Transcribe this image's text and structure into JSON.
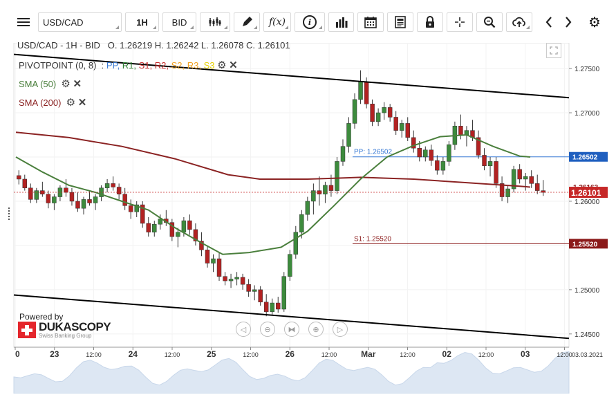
{
  "toolbar": {
    "instrument": "USD/CAD",
    "timeframe": "1H",
    "side": "BID",
    "icons": [
      "menu-icon",
      "candlestick-icon",
      "pencil-icon",
      "function-icon",
      "info-icon",
      "bar-chart-icon",
      "calendar-icon",
      "news-icon",
      "lock-icon",
      "crosshair-icon",
      "zoom-icon",
      "upload-icon",
      "chevron-left-icon",
      "chevron-right-icon",
      "gear-icon"
    ]
  },
  "legend": {
    "title": "USD/CAD - 1H - BID",
    "ohlc": "O. 1.26219 H. 1.26242 L. 1.26078 C. 1.26101",
    "pivot_label": "PIVOTPOINT (0, 8)",
    "pivot_series": [
      {
        "name": "PP",
        "color": "#3a7bd5"
      },
      {
        "name": "R1",
        "color": "#2e7d32"
      },
      {
        "name": "S1",
        "color": "#c62828"
      },
      {
        "name": "R2",
        "color": "#c62828"
      },
      {
        "name": "S2",
        "color": "#f0a020"
      },
      {
        "name": "R3",
        "color": "#f0a020"
      },
      {
        "name": "S3",
        "color": "#e6d100"
      }
    ],
    "sma50_label": "SMA (50)",
    "sma50_color": "#4a7f3c",
    "sma200_label": "SMA (200)",
    "sma200_color": "#8b2323"
  },
  "branding": {
    "powered_by": "Powered by",
    "name": "DUKASCOPY",
    "sub": "Swiss Banking Group"
  },
  "chart_data": {
    "type": "candlestick",
    "y_ticks": [
      "1.27500",
      "1.27000",
      "1.26500",
      "1.26000",
      "1.25500",
      "1.25000",
      "1.24500"
    ],
    "ylim": [
      1.2435,
      1.2779
    ],
    "x_ticks": [
      "0",
      "23",
      "12:00",
      "24",
      "12:00",
      "25",
      "12:00",
      "26",
      "12:00",
      "Mar",
      "12:00",
      "02",
      "12:00",
      "03",
      "12:00"
    ],
    "date_stamp": "03.03.2021",
    "last_price": "1.26101",
    "last_price_color": "#c62828",
    "partial_label": "1.26163",
    "pivot_lines": [
      {
        "name": "PP",
        "label": "PP: 1.26502",
        "axis_label": "1.26502",
        "value": 1.26502,
        "color": "#3a7bd5"
      },
      {
        "name": "S1",
        "label": "S1: 1.25520",
        "axis_label": "1.25520",
        "value": 1.2552,
        "color": "#8b1a1a"
      }
    ],
    "trend_channel": {
      "upper": [
        [
          0,
          1.2766
        ],
        [
          1,
          1.2717
        ]
      ],
      "lower": [
        [
          0,
          1.2494
        ],
        [
          1,
          1.2445
        ]
      ]
    },
    "candles": [
      [
        1.2629,
        1.2635,
        1.2619,
        1.2625
      ],
      [
        1.2625,
        1.263,
        1.2612,
        1.2615
      ],
      [
        1.2615,
        1.262,
        1.2598,
        1.2602
      ],
      [
        1.2602,
        1.2615,
        1.2598,
        1.2612
      ],
      [
        1.2612,
        1.2622,
        1.2605,
        1.2608
      ],
      [
        1.2608,
        1.2612,
        1.2592,
        1.2598
      ],
      [
        1.2598,
        1.2608,
        1.259,
        1.2605
      ],
      [
        1.2605,
        1.2618,
        1.26,
        1.2615
      ],
      [
        1.2615,
        1.2625,
        1.2605,
        1.261
      ],
      [
        1.261,
        1.2615,
        1.2595,
        1.26
      ],
      [
        1.26,
        1.261,
        1.2588,
        1.2592
      ],
      [
        1.2592,
        1.2605,
        1.2585,
        1.2602
      ],
      [
        1.2602,
        1.2612,
        1.2595,
        1.2598
      ],
      [
        1.2598,
        1.2608,
        1.259,
        1.2605
      ],
      [
        1.2605,
        1.2618,
        1.26,
        1.2615
      ],
      [
        1.2615,
        1.2625,
        1.261,
        1.262
      ],
      [
        1.262,
        1.2628,
        1.2612,
        1.2616
      ],
      [
        1.2616,
        1.262,
        1.2602,
        1.2608
      ],
      [
        1.2608,
        1.2615,
        1.259,
        1.2595
      ],
      [
        1.2595,
        1.2602,
        1.258,
        1.2588
      ],
      [
        1.2588,
        1.26,
        1.2582,
        1.2596
      ],
      [
        1.2596,
        1.26,
        1.257,
        1.2575
      ],
      [
        1.2575,
        1.2582,
        1.256,
        1.2565
      ],
      [
        1.2565,
        1.2578,
        1.256,
        1.2574
      ],
      [
        1.2574,
        1.2585,
        1.2568,
        1.258
      ],
      [
        1.258,
        1.259,
        1.2572,
        1.2576
      ],
      [
        1.2576,
        1.258,
        1.2555,
        1.256
      ],
      [
        1.256,
        1.257,
        1.2548,
        1.2565
      ],
      [
        1.2565,
        1.2582,
        1.256,
        1.2578
      ],
      [
        1.2578,
        1.2585,
        1.2562,
        1.2568
      ],
      [
        1.2568,
        1.2575,
        1.255,
        1.2555
      ],
      [
        1.2555,
        1.2565,
        1.2538,
        1.2545
      ],
      [
        1.2545,
        1.255,
        1.2525,
        1.253
      ],
      [
        1.253,
        1.254,
        1.252,
        1.2535
      ],
      [
        1.2535,
        1.2542,
        1.251,
        1.2515
      ],
      [
        1.2515,
        1.252,
        1.2505,
        1.251
      ],
      [
        1.251,
        1.2518,
        1.2502,
        1.2512
      ],
      [
        1.2512,
        1.252,
        1.2505,
        1.2514
      ],
      [
        1.2514,
        1.2518,
        1.25,
        1.2506
      ],
      [
        1.2506,
        1.2512,
        1.2492,
        1.2498
      ],
      [
        1.2498,
        1.2505,
        1.2488,
        1.25
      ],
      [
        1.25,
        1.2504,
        1.2482,
        1.2486
      ],
      [
        1.2486,
        1.2495,
        1.247,
        1.2475
      ],
      [
        1.2475,
        1.249,
        1.2472,
        1.2485
      ],
      [
        1.2485,
        1.2492,
        1.2474,
        1.2478
      ],
      [
        1.2478,
        1.252,
        1.2475,
        1.2515
      ],
      [
        1.2515,
        1.2545,
        1.251,
        1.254
      ],
      [
        1.254,
        1.2572,
        1.2535,
        1.2565
      ],
      [
        1.2565,
        1.259,
        1.2558,
        1.2585
      ],
      [
        1.2585,
        1.2605,
        1.2578,
        1.26
      ],
      [
        1.26,
        1.262,
        1.2585,
        1.2612
      ],
      [
        1.2612,
        1.2628,
        1.2595,
        1.2608
      ],
      [
        1.2608,
        1.2622,
        1.2598,
        1.2618
      ],
      [
        1.2618,
        1.263,
        1.2605,
        1.2612
      ],
      [
        1.2612,
        1.265,
        1.2608,
        1.2645
      ],
      [
        1.2645,
        1.267,
        1.264,
        1.2662
      ],
      [
        1.2662,
        1.2695,
        1.2655,
        1.2688
      ],
      [
        1.2688,
        1.2722,
        1.2682,
        1.2715
      ],
      [
        1.2715,
        1.2748,
        1.271,
        1.2735
      ],
      [
        1.2735,
        1.274,
        1.2705,
        1.271
      ],
      [
        1.271,
        1.2715,
        1.2685,
        1.269
      ],
      [
        1.269,
        1.2705,
        1.2685,
        1.27
      ],
      [
        1.27,
        1.2712,
        1.2692,
        1.2706
      ],
      [
        1.2706,
        1.271,
        1.269,
        1.2695
      ],
      [
        1.2695,
        1.2702,
        1.2675,
        1.268
      ],
      [
        1.268,
        1.2692,
        1.2672,
        1.2688
      ],
      [
        1.2688,
        1.2695,
        1.2668,
        1.2672
      ],
      [
        1.2672,
        1.268,
        1.2655,
        1.266
      ],
      [
        1.266,
        1.2668,
        1.2645,
        1.265
      ],
      [
        1.265,
        1.2662,
        1.2645,
        1.2658
      ],
      [
        1.2658,
        1.2664,
        1.264,
        1.2646
      ],
      [
        1.2646,
        1.2652,
        1.263,
        1.2635
      ],
      [
        1.2635,
        1.265,
        1.263,
        1.2645
      ],
      [
        1.2645,
        1.2668,
        1.264,
        1.2664
      ],
      [
        1.2664,
        1.269,
        1.2658,
        1.2685
      ],
      [
        1.2685,
        1.2698,
        1.267,
        1.2675
      ],
      [
        1.2675,
        1.2685,
        1.2662,
        1.268
      ],
      [
        1.268,
        1.2692,
        1.2668,
        1.2672
      ],
      [
        1.2672,
        1.268,
        1.2648,
        1.2652
      ],
      [
        1.2652,
        1.266,
        1.2635,
        1.264
      ],
      [
        1.264,
        1.265,
        1.2628,
        1.2645
      ],
      [
        1.2645,
        1.265,
        1.2615,
        1.262
      ],
      [
        1.262,
        1.2628,
        1.26,
        1.2605
      ],
      [
        1.2605,
        1.2618,
        1.2598,
        1.2614
      ],
      [
        1.2614,
        1.264,
        1.261,
        1.2636
      ],
      [
        1.2636,
        1.2642,
        1.262,
        1.2625
      ],
      [
        1.2625,
        1.2632,
        1.2612,
        1.2628
      ],
      [
        1.2628,
        1.2635,
        1.2615,
        1.262
      ],
      [
        1.262,
        1.263,
        1.2608,
        1.2612
      ],
      [
        1.2612,
        1.2624,
        1.2606,
        1.261
      ]
    ],
    "sma50": [
      [
        0,
        1.265
      ],
      [
        0.05,
        1.2633
      ],
      [
        0.1,
        1.2618
      ],
      [
        0.15,
        1.261
      ],
      [
        0.2,
        1.26
      ],
      [
        0.25,
        1.259
      ],
      [
        0.3,
        1.257
      ],
      [
        0.35,
        1.2553
      ],
      [
        0.39,
        1.254
      ],
      [
        0.44,
        1.2542
      ],
      [
        0.5,
        1.2548
      ],
      [
        0.55,
        1.2566
      ],
      [
        0.6,
        1.2595
      ],
      [
        0.65,
        1.2625
      ],
      [
        0.7,
        1.265
      ],
      [
        0.75,
        1.2663
      ],
      [
        0.8,
        1.2673
      ],
      [
        0.85,
        1.2675
      ],
      [
        0.9,
        1.2662
      ],
      [
        0.95,
        1.2651
      ],
      [
        0.97,
        1.265
      ]
    ],
    "sma200": [
      [
        0,
        1.2678
      ],
      [
        0.1,
        1.2672
      ],
      [
        0.2,
        1.2662
      ],
      [
        0.3,
        1.2648
      ],
      [
        0.4,
        1.263
      ],
      [
        0.46,
        1.2625
      ],
      [
        0.55,
        1.2625
      ],
      [
        0.65,
        1.2627
      ],
      [
        0.75,
        1.2625
      ],
      [
        0.85,
        1.2621
      ],
      [
        0.95,
        1.2617
      ],
      [
        0.97,
        1.2616
      ]
    ]
  }
}
